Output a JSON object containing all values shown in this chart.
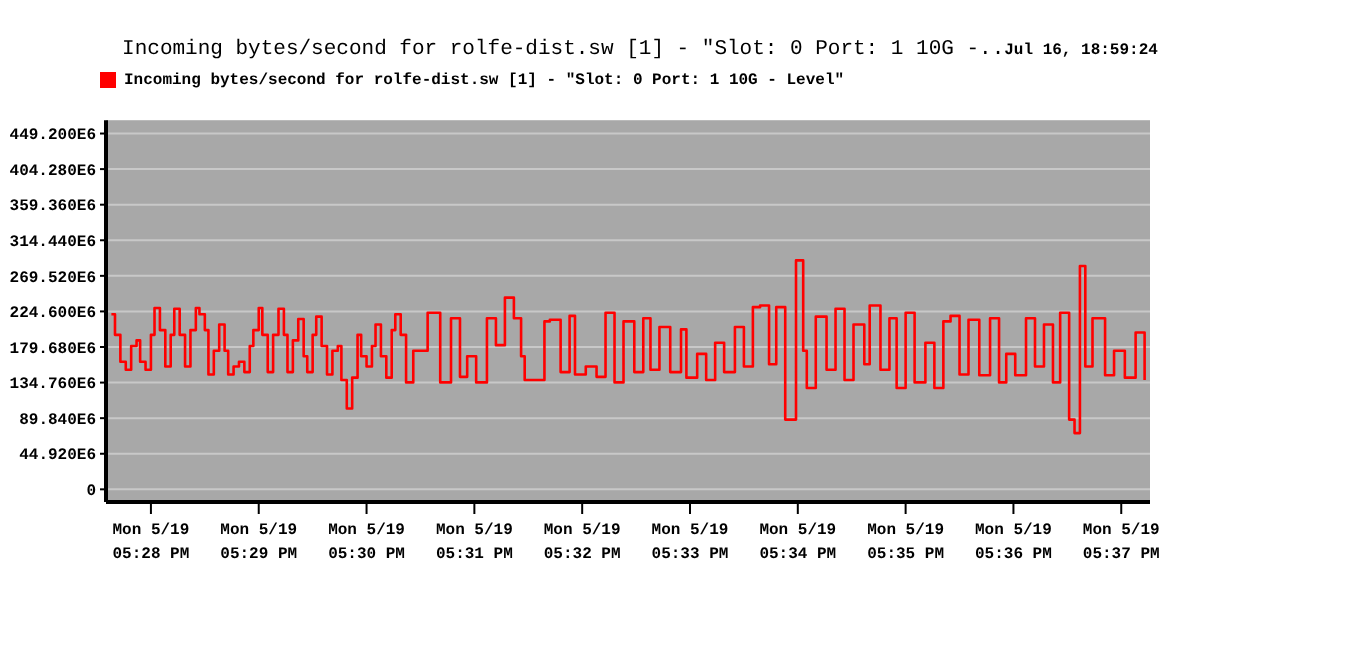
{
  "chart_data": {
    "type": "step",
    "title": "Incoming bytes/second for rolfe-dist.sw [1] - \"Slot: 0 Port: 1 10G -..",
    "subtitle": "Jul 16, 18:59:24",
    "x": [
      "--05-19T17:27:38",
      "--05-19T17:27:40",
      "--05-19T17:27:43",
      "--05-19T17:27:46",
      "--05-19T17:27:49",
      "--05-19T17:27:52",
      "--05-19T17:27:54",
      "--05-19T17:27:57",
      "--05-19T17:28:00",
      "--05-19T17:28:02",
      "--05-19T17:28:05",
      "--05-19T17:28:08",
      "--05-19T17:28:11",
      "--05-19T17:28:13",
      "--05-19T17:28:16",
      "--05-19T17:28:19",
      "--05-19T17:28:22",
      "--05-19T17:28:25",
      "--05-19T17:28:27",
      "--05-19T17:28:30",
      "--05-19T17:28:32",
      "--05-19T17:28:35",
      "--05-19T17:28:38",
      "--05-19T17:28:41",
      "--05-19T17:28:43",
      "--05-19T17:28:46",
      "--05-19T17:28:49",
      "--05-19T17:28:52",
      "--05-19T17:28:55",
      "--05-19T17:28:57",
      "--05-19T17:29:00",
      "--05-19T17:29:02",
      "--05-19T17:29:05",
      "--05-19T17:29:08",
      "--05-19T17:29:11",
      "--05-19T17:29:14",
      "--05-19T17:29:16",
      "--05-19T17:29:19",
      "--05-19T17:29:22",
      "--05-19T17:29:25",
      "--05-19T17:29:27",
      "--05-19T17:29:30",
      "--05-19T17:29:32",
      "--05-19T17:29:35",
      "--05-19T17:29:38",
      "--05-19T17:29:41",
      "--05-19T17:29:44",
      "--05-19T17:29:46",
      "--05-19T17:29:49",
      "--05-19T17:29:52",
      "--05-19T17:29:55",
      "--05-19T17:29:57",
      "--05-19T17:30:00",
      "--05-19T17:30:03",
      "--05-19T17:30:05",
      "--05-19T17:30:08",
      "--05-19T17:30:11",
      "--05-19T17:30:14",
      "--05-19T17:30:16",
      "--05-19T17:30:19",
      "--05-19T17:30:22",
      "--05-19T17:30:26",
      "--05-19T17:30:34",
      "--05-19T17:30:41",
      "--05-19T17:30:47",
      "--05-19T17:30:52",
      "--05-19T17:30:56",
      "--05-19T17:31:01",
      "--05-19T17:31:07",
      "--05-19T17:31:12",
      "--05-19T17:31:17",
      "--05-19T17:31:22",
      "--05-19T17:31:26",
      "--05-19T17:31:28",
      "--05-19T17:31:37",
      "--05-19T17:31:39",
      "--05-19T17:31:42",
      "--05-19T17:31:48",
      "--05-19T17:31:53",
      "--05-19T17:31:56",
      "--05-19T17:32:02",
      "--05-19T17:32:08",
      "--05-19T17:32:13",
      "--05-19T17:32:18",
      "--05-19T17:32:23",
      "--05-19T17:32:29",
      "--05-19T17:32:34",
      "--05-19T17:32:38",
      "--05-19T17:32:43",
      "--05-19T17:32:49",
      "--05-19T17:32:55",
      "--05-19T17:32:58",
      "--05-19T17:33:04",
      "--05-19T17:33:09",
      "--05-19T17:33:14",
      "--05-19T17:33:19",
      "--05-19T17:33:25",
      "--05-19T17:33:30",
      "--05-19T17:33:35",
      "--05-19T17:33:39",
      "--05-19T17:33:44",
      "--05-19T17:33:48",
      "--05-19T17:33:53",
      "--05-19T17:33:59",
      "--05-19T17:34:03",
      "--05-19T17:34:05",
      "--05-19T17:34:10",
      "--05-19T17:34:16",
      "--05-19T17:34:21",
      "--05-19T17:34:26",
      "--05-19T17:34:31",
      "--05-19T17:34:37",
      "--05-19T17:34:40",
      "--05-19T17:34:46",
      "--05-19T17:34:51",
      "--05-19T17:34:55",
      "--05-19T17:35:00",
      "--05-19T17:35:05",
      "--05-19T17:35:11",
      "--05-19T17:35:16",
      "--05-19T17:35:21",
      "--05-19T17:35:25",
      "--05-19T17:35:30",
      "--05-19T17:35:35",
      "--05-19T17:35:41",
      "--05-19T17:35:47",
      "--05-19T17:35:52",
      "--05-19T17:35:56",
      "--05-19T17:36:01",
      "--05-19T17:36:07",
      "--05-19T17:36:12",
      "--05-19T17:36:17",
      "--05-19T17:36:22",
      "--05-19T17:36:26",
      "--05-19T17:36:31",
      "--05-19T17:36:34",
      "--05-19T17:36:37",
      "--05-19T17:36:40",
      "--05-19T17:36:44",
      "--05-19T17:36:51",
      "--05-19T17:36:56",
      "--05-19T17:37:02",
      "--05-19T17:37:08",
      "--05-19T17:37:13"
    ],
    "series": [
      {
        "name": "Incoming bytes/second for rolfe-dist.sw [1] - \"Slot: 0 Port: 1 10G - Level\"",
        "color": "#ff0000",
        "values": [
          221000000,
          195000000,
          161000000,
          151000000,
          181000000,
          188000000,
          161000000,
          151000000,
          195000000,
          229000000,
          201000000,
          155000000,
          195000000,
          228000000,
          195000000,
          155000000,
          201000000,
          229000000,
          221000000,
          201000000,
          145000000,
          175000000,
          208000000,
          175000000,
          145000000,
          155000000,
          161000000,
          148000000,
          181000000,
          201000000,
          229000000,
          195000000,
          148000000,
          195000000,
          228000000,
          195000000,
          148000000,
          188000000,
          215000000,
          168000000,
          148000000,
          195000000,
          218000000,
          181000000,
          145000000,
          175000000,
          181000000,
          138000000,
          102000000,
          141000000,
          195000000,
          168000000,
          155000000,
          181000000,
          208000000,
          168000000,
          141000000,
          201000000,
          221000000,
          195000000,
          135000000,
          175000000,
          223000000,
          135000000,
          216000000,
          142000000,
          168000000,
          135000000,
          216000000,
          182000000,
          242000000,
          216000000,
          168000000,
          138000000,
          138000000,
          212000000,
          214000000,
          148000000,
          219000000,
          145000000,
          155000000,
          142000000,
          223000000,
          135000000,
          212000000,
          148000000,
          216000000,
          151000000,
          205000000,
          148000000,
          202000000,
          141000000,
          171000000,
          138000000,
          185000000,
          148000000,
          205000000,
          155000000,
          230000000,
          232000000,
          158000000,
          230000000,
          88000000,
          289000000,
          175000000,
          128000000,
          218000000,
          151000000,
          228000000,
          138000000,
          208000000,
          158000000,
          232000000,
          151000000,
          216000000,
          128000000,
          223000000,
          135000000,
          185000000,
          128000000,
          212000000,
          219000000,
          145000000,
          214000000,
          144000000,
          216000000,
          135000000,
          171000000,
          144000000,
          216000000,
          155000000,
          208000000,
          135000000,
          223000000,
          88000000,
          71000000,
          282000000,
          155000000,
          216000000,
          144000000,
          175000000,
          141000000,
          198000000,
          138000000
        ]
      }
    ],
    "xlim": [
      "--05-19T17:27:35",
      "--05-19T17:37:16"
    ],
    "xticks": [
      {
        "value": "--05-19T17:28",
        "label": "Mon 5/19\n05:28 PM"
      },
      {
        "value": "--05-19T17:29",
        "label": "Mon 5/19\n05:29 PM"
      },
      {
        "value": "--05-19T17:30",
        "label": "Mon 5/19\n05:30 PM"
      },
      {
        "value": "--05-19T17:31",
        "label": "Mon 5/19\n05:31 PM"
      },
      {
        "value": "--05-19T17:32",
        "label": "Mon 5/19\n05:32 PM"
      },
      {
        "value": "--05-19T17:33",
        "label": "Mon 5/19\n05:33 PM"
      },
      {
        "value": "--05-19T17:34",
        "label": "Mon 5/19\n05:34 PM"
      },
      {
        "value": "--05-19T17:35",
        "label": "Mon 5/19\n05:35 PM"
      },
      {
        "value": "--05-19T17:36",
        "label": "Mon 5/19\n05:36 PM"
      },
      {
        "value": "--05-19T17:37",
        "label": "Mon 5/19\n05:37 PM"
      }
    ],
    "ylim": [
      -16000000,
      466000000
    ],
    "yticks": [
      0,
      {
        "value": 44920000,
        "label": "44.920E6"
      },
      {
        "value": 89840000,
        "label": "89.840E6"
      },
      {
        "value": 134760000,
        "label": "134.760E6"
      },
      {
        "value": 179680000,
        "label": "179.680E6"
      },
      {
        "value": 224600000,
        "label": "224.600E6"
      },
      {
        "value": 269520000,
        "label": "269.520E6"
      },
      {
        "value": 314440000,
        "label": "314.440E6"
      },
      {
        "value": 359360000,
        "label": "359.360E6"
      },
      {
        "value": 404280000,
        "label": "404.280E6"
      },
      {
        "value": 449200000,
        "label": "449.200E6"
      }
    ],
    "grid": "y",
    "legend": "top left"
  }
}
